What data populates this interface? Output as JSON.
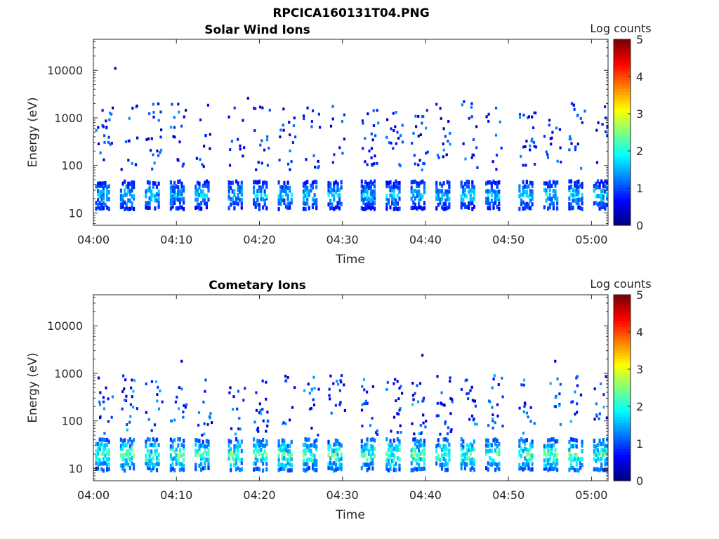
{
  "figure": {
    "title": "RPCICA160131T04.PNG"
  },
  "colors": {
    "axis": "#262626",
    "background": "#ffffff",
    "colormap": "jet"
  },
  "chart_data": [
    {
      "type": "heatmap",
      "title": "Solar Wind Ions",
      "xlabel": "Time",
      "ylabel": "Energy (eV)",
      "y_scale": "log",
      "xlim": [
        "04:00",
        "05:02"
      ],
      "ylim": [
        5.5,
        45000
      ],
      "x_ticks": [
        "04:00",
        "04:10",
        "04:20",
        "04:30",
        "04:40",
        "04:50",
        "05:00"
      ],
      "y_ticks": [
        {
          "value": 10,
          "label": "10"
        },
        {
          "value": 100,
          "label": "100"
        },
        {
          "value": 1000,
          "label": "1000"
        },
        {
          "value": 10000,
          "label": "10000"
        }
      ],
      "colorbar": {
        "label": "Log counts",
        "range": [
          0,
          5
        ],
        "ticks": [
          "0",
          "1",
          "2",
          "3",
          "4",
          "5"
        ]
      },
      "grid": false,
      "scan_times": [
        "04:00",
        "04:03",
        "04:06",
        "04:09",
        "04:12",
        "04:16",
        "04:19",
        "04:22",
        "04:25",
        "04:28",
        "04:32",
        "04:35",
        "04:38",
        "04:41",
        "04:44",
        "04:47",
        "04:51",
        "04:54",
        "04:57",
        "05:00"
      ],
      "low_band": {
        "energy_range": [
          12,
          50
        ],
        "peak_log_counts": 2.0
      },
      "scattered": {
        "energy_range": [
          80,
          2000
        ],
        "peak_log_counts": 1.4
      },
      "isolated_hits": [
        {
          "time": "04:02",
          "energy": 11000,
          "log_counts": 0.4
        },
        {
          "time": "04:18",
          "energy": 2600,
          "log_counts": 0.4
        },
        {
          "time": "04:44",
          "energy": 2200,
          "log_counts": 0.8
        },
        {
          "time": "04:57",
          "energy": 2000,
          "log_counts": 0.8
        }
      ]
    },
    {
      "type": "heatmap",
      "title": "Cometary Ions",
      "xlabel": "Time",
      "ylabel": "Energy (eV)",
      "y_scale": "log",
      "xlim": [
        "04:00",
        "05:02"
      ],
      "ylim": [
        5.5,
        45000
      ],
      "x_ticks": [
        "04:00",
        "04:10",
        "04:20",
        "04:30",
        "04:40",
        "04:50",
        "05:00"
      ],
      "y_ticks": [
        {
          "value": 10,
          "label": "10"
        },
        {
          "value": 100,
          "label": "100"
        },
        {
          "value": 1000,
          "label": "1000"
        },
        {
          "value": 10000,
          "label": "10000"
        }
      ],
      "colorbar": {
        "label": "Log counts",
        "range": [
          0,
          5
        ],
        "ticks": [
          "0",
          "1",
          "2",
          "3",
          "4",
          "5"
        ]
      },
      "grid": false,
      "scan_times": [
        "04:00",
        "04:03",
        "04:06",
        "04:09",
        "04:12",
        "04:16",
        "04:19",
        "04:22",
        "04:25",
        "04:28",
        "04:32",
        "04:35",
        "04:38",
        "04:41",
        "04:44",
        "04:47",
        "04:51",
        "04:54",
        "04:57",
        "05:00"
      ],
      "low_band": {
        "energy_range": [
          9,
          45
        ],
        "peak_log_counts": 2.8
      },
      "scattered": {
        "energy_range": [
          50,
          900
        ],
        "peak_log_counts": 1.6
      },
      "isolated_hits": [
        {
          "time": "04:00",
          "energy": 800,
          "log_counts": 0.4
        },
        {
          "time": "04:10",
          "energy": 1800,
          "log_counts": 0.4
        },
        {
          "time": "04:39",
          "energy": 2400,
          "log_counts": 0.4
        },
        {
          "time": "04:55",
          "energy": 1800,
          "log_counts": 0.4
        }
      ]
    }
  ]
}
